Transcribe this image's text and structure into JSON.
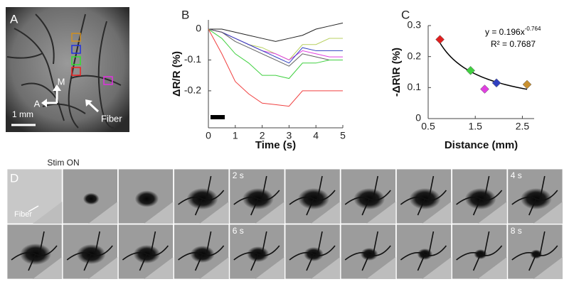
{
  "chart_data": [
    {
      "type": "line",
      "panel": "B",
      "ylabel": "ΔR/R (%)",
      "xlabel": "Time (s)",
      "x": [
        0,
        0.5,
        1,
        1.5,
        2,
        2.5,
        3,
        3.5,
        4,
        4.5,
        5
      ],
      "series": [
        {
          "color": "#222222",
          "values": [
            0,
            0,
            -0.01,
            -0.02,
            -0.03,
            -0.04,
            -0.03,
            -0.02,
            0,
            0.01,
            0.02
          ]
        },
        {
          "color": "#b8d060",
          "values": [
            0,
            -0.01,
            -0.03,
            -0.05,
            -0.06,
            -0.08,
            -0.1,
            -0.05,
            -0.05,
            -0.03,
            -0.03
          ]
        },
        {
          "color": "#e040e0",
          "values": [
            0,
            -0.01,
            -0.03,
            -0.05,
            -0.07,
            -0.08,
            -0.1,
            -0.07,
            -0.08,
            -0.09,
            -0.09
          ]
        },
        {
          "color": "#3040c0",
          "values": [
            0,
            -0.01,
            -0.03,
            -0.05,
            -0.07,
            -0.09,
            -0.11,
            -0.06,
            -0.07,
            -0.07,
            -0.07
          ]
        },
        {
          "color": "#606060",
          "values": [
            0,
            -0.01,
            -0.04,
            -0.06,
            -0.08,
            -0.1,
            -0.12,
            -0.08,
            -0.09,
            -0.1,
            -0.1
          ]
        },
        {
          "color": "#40d040",
          "values": [
            0,
            -0.03,
            -0.08,
            -0.11,
            -0.15,
            -0.15,
            -0.16,
            -0.11,
            -0.11,
            -0.1,
            -0.1
          ]
        },
        {
          "color": "#f04040",
          "values": [
            0,
            -0.08,
            -0.17,
            -0.21,
            -0.24,
            -0.245,
            -0.25,
            -0.2,
            -0.2,
            -0.2,
            -0.2
          ]
        }
      ],
      "xlim": [
        0,
        5
      ],
      "xticks": [
        0,
        1,
        2,
        3,
        4,
        5
      ],
      "ylim": [
        -0.32,
        0.03
      ],
      "yticks": [
        0,
        -0.1,
        -0.2
      ]
    },
    {
      "type": "scatter",
      "panel": "C",
      "ylabel": "-ΔR\\R (%)",
      "xlabel": "Distance (mm)",
      "x": [
        0.75,
        1.4,
        1.7,
        1.95,
        2.6
      ],
      "values": [
        0.255,
        0.155,
        0.095,
        0.115,
        0.11
      ],
      "colors": [
        "#e02020",
        "#40d040",
        "#e040e0",
        "#3040c0",
        "#c89030"
      ],
      "fit": {
        "a": 0.196,
        "b": -0.764
      },
      "equation": "y = 0.196x",
      "exponent": "-0.764",
      "r_squared": "R² = 0.7687",
      "xlim": [
        0.5,
        2.75
      ],
      "xticks": [
        0.5,
        1.5,
        2.5
      ],
      "ylim": [
        0,
        0.3
      ],
      "yticks": [
        0,
        0.1,
        0.2,
        0.3
      ]
    }
  ],
  "panel_a": {
    "letter": "A",
    "medial": "M",
    "anterior": "A",
    "fiber": "Fiber",
    "scale": "1 mm"
  },
  "panel_d": {
    "letter": "D",
    "stim": "Stim ON",
    "fiber": "Fiber",
    "frame_labels": [
      null,
      null,
      null,
      null,
      "2 s",
      null,
      null,
      null,
      null,
      "4 s",
      null,
      null,
      null,
      null,
      "6 s",
      null,
      null,
      null,
      null,
      "8 s"
    ]
  }
}
